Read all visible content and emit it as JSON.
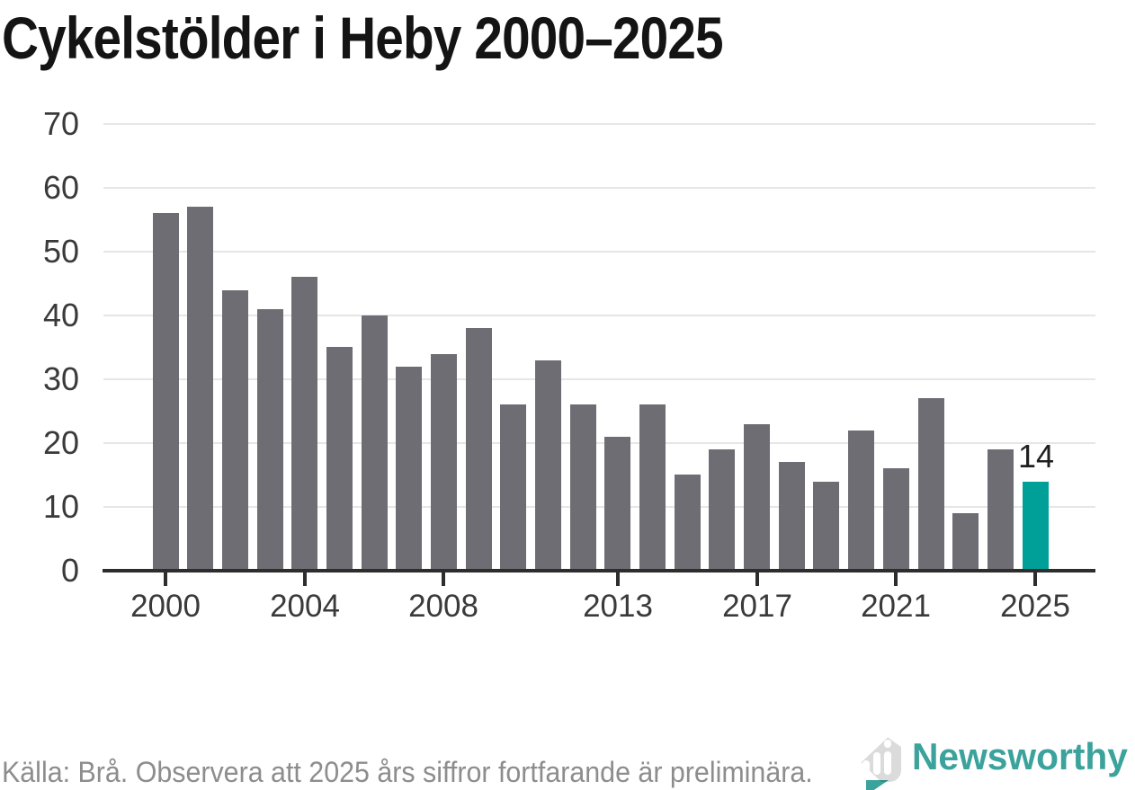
{
  "title": "Cykelstölder i Heby 2000–2025",
  "chart_data": {
    "type": "bar",
    "title": "Cykelstölder i Heby 2000–2025",
    "x": [
      2000,
      2001,
      2002,
      2003,
      2004,
      2005,
      2006,
      2007,
      2008,
      2009,
      2010,
      2011,
      2012,
      2013,
      2014,
      2015,
      2016,
      2017,
      2018,
      2019,
      2020,
      2021,
      2022,
      2023,
      2024,
      2025
    ],
    "values": [
      56,
      57,
      44,
      41,
      46,
      35,
      40,
      32,
      34,
      38,
      26,
      33,
      26,
      21,
      26,
      15,
      19,
      23,
      17,
      14,
      22,
      16,
      27,
      9,
      19,
      14
    ],
    "highlight": {
      "year": 2025,
      "value": 14,
      "label": "14"
    },
    "xlabel": "",
    "ylabel": "",
    "ylim": [
      0,
      70
    ],
    "y_ticks": [
      0,
      10,
      20,
      30,
      40,
      50,
      60,
      70
    ],
    "x_tick_years": [
      2000,
      2004,
      2008,
      2013,
      2017,
      2021,
      2025
    ],
    "x_tick_labels": [
      "2000",
      "2004",
      "2008",
      "2013",
      "2017",
      "2021",
      "2025"
    ],
    "grid": "horizontal",
    "legend": "none",
    "colors": {
      "bar": "#6f6d74",
      "highlight_bar": "#00a099",
      "axis": "#2d2d2d",
      "gridline": "#e6e6e6",
      "tick_label": "#3a3a3a",
      "annotation_text": "#1f1f1f"
    }
  },
  "annotation": {
    "text": "14"
  },
  "footer": {
    "source_note": "Källa: Brå. Observera att 2025 års siffror fortfarande är preliminära."
  },
  "logo": {
    "text": "Newsworthy",
    "color": "#3ba29c",
    "icon": "newsworthy-pin-icon"
  }
}
